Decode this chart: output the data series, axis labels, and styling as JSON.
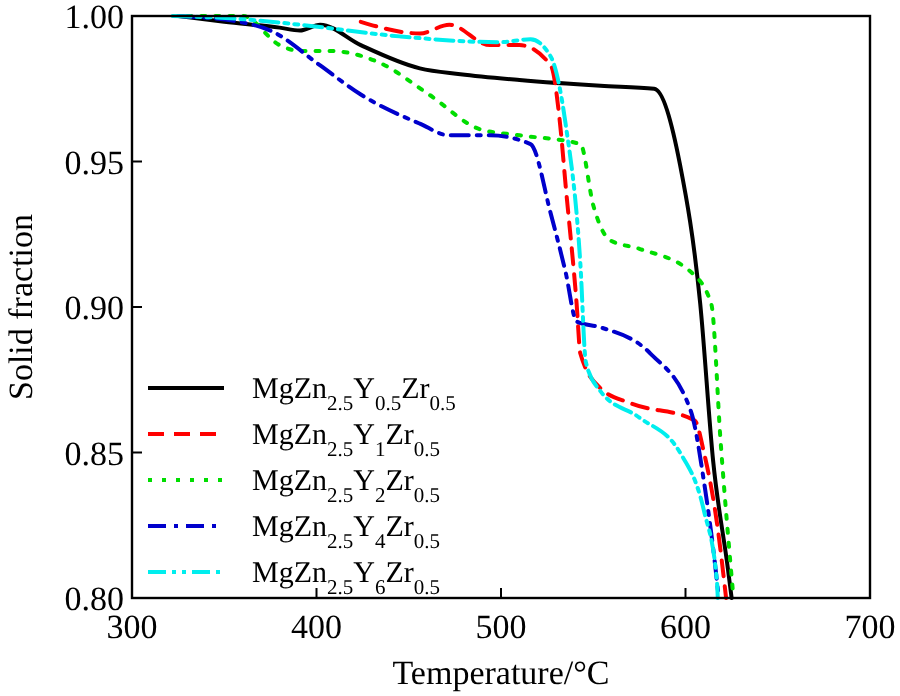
{
  "chart_data": {
    "type": "line",
    "xlabel": "Temperature/°C",
    "ylabel": "Solid fraction",
    "xlim": [
      300,
      700
    ],
    "ylim": [
      0.8,
      1.0
    ],
    "xticks": [
      300,
      400,
      500,
      600,
      700
    ],
    "yticks": [
      {
        "value": 0.8,
        "label": "0.80"
      },
      {
        "value": 0.85,
        "label": "0.85"
      },
      {
        "value": 0.9,
        "label": "0.90"
      },
      {
        "value": 0.95,
        "label": "0.95"
      },
      {
        "value": 1.0,
        "label": "1.00"
      }
    ],
    "legend": "bottom left",
    "grid": false,
    "series": [
      {
        "name": "MgZn$_{2.5}$Y$_{0.5}$Zr$_{0.5}$",
        "color": "#000000",
        "line_style": "solid",
        "x": [
          325,
          350,
          380,
          391,
          402,
          424,
          456,
          478,
          510,
          554,
          583,
          597,
          608,
          615,
          623,
          625
        ],
        "values": [
          1.0,
          0.998,
          0.996,
          0.995,
          0.997,
          0.99,
          0.982,
          0.98,
          0.978,
          0.976,
          0.975,
          0.949,
          0.901,
          0.847,
          0.81,
          0.8
        ]
      },
      {
        "name": "MgZn$_{2.5}$Y$_{1}$Zr$_{0.5}$",
        "color": "#ff0000",
        "line_style": "dashed",
        "x": [
          424,
          456,
          472,
          494,
          510,
          527,
          532,
          535,
          541,
          543,
          554,
          570,
          605,
          610,
          617,
          622
        ],
        "values": [
          0.998,
          0.994,
          0.997,
          0.99,
          0.99,
          0.983,
          0.963,
          0.942,
          0.901,
          0.884,
          0.872,
          0.867,
          0.861,
          0.85,
          0.826,
          0.8
        ]
      },
      {
        "name": "MgZn$_{2.5}$Y$_{2}$Zr$_{0.5}$",
        "color": "#00dd00",
        "line_style": "dotted",
        "x": [
          330,
          360,
          380,
          391,
          407,
          434,
          461,
          489,
          510,
          543,
          550,
          559,
          575,
          603,
          614,
          619,
          626
        ],
        "values": [
          1.0,
          1.0,
          0.99,
          0.988,
          0.988,
          0.984,
          0.973,
          0.961,
          0.959,
          0.956,
          0.935,
          0.923,
          0.92,
          0.912,
          0.901,
          0.854,
          0.8
        ]
      },
      {
        "name": "MgZn$_{2.5}$Y$_{4}$Zr$_{0.5}$",
        "color": "#0000cc",
        "line_style": "dashdot",
        "x": [
          325,
          358,
          375,
          402,
          424,
          456,
          472,
          494,
          516,
          527,
          535,
          541,
          554,
          581,
          603,
          610,
          617,
          618
        ],
        "values": [
          1.0,
          0.998,
          0.995,
          0.983,
          0.973,
          0.963,
          0.959,
          0.959,
          0.956,
          0.932,
          0.912,
          0.895,
          0.893,
          0.884,
          0.864,
          0.84,
          0.806,
          0.8
        ]
      },
      {
        "name": "MgZn$_{2.5}$Y$_{6}$Zr$_{0.5}$",
        "color": "#00eeee",
        "line_style": "dashdotdot",
        "x": [
          322,
          358,
          391,
          445,
          499,
          516,
          527,
          535,
          543,
          546,
          554,
          575,
          597,
          610,
          617,
          617.5
        ],
        "values": [
          1.0,
          0.999,
          0.997,
          0.993,
          0.991,
          0.992,
          0.986,
          0.963,
          0.915,
          0.881,
          0.871,
          0.862,
          0.85,
          0.83,
          0.806,
          0.8
        ]
      }
    ]
  }
}
